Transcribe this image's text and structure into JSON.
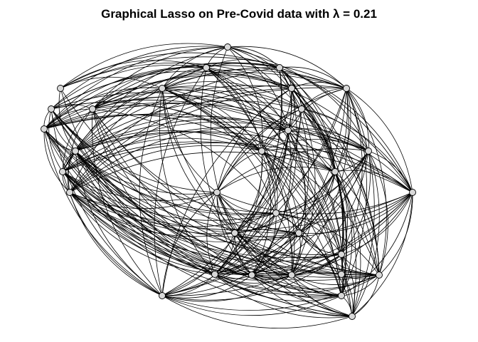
{
  "title": "Graphical Lasso on Pre-Covid data with λ =  0.21",
  "colors": {
    "edge": "#000000",
    "node_fill": "#d9d9d9",
    "node_stroke": "#000000",
    "background": "#ffffff"
  },
  "graph": {
    "nodes": [
      "n01",
      "n02",
      "n03",
      "n04",
      "n05",
      "n06",
      "n07",
      "n08",
      "n09",
      "n10",
      "n11",
      "n12",
      "n13",
      "n14",
      "n15",
      "n16",
      "n17",
      "n18",
      "n19",
      "n20",
      "n21",
      "n22",
      "n23",
      "n24",
      "n25",
      "n26",
      "n27",
      "n28",
      "n29",
      "n30",
      "n31",
      "n32"
    ],
    "edges": [
      [
        "n01",
        "n02"
      ],
      [
        "n01",
        "n03"
      ],
      [
        "n01",
        "n04"
      ],
      [
        "n01",
        "n05"
      ],
      [
        "n01",
        "n06"
      ],
      [
        "n01",
        "n07"
      ],
      [
        "n01",
        "n08"
      ],
      [
        "n01",
        "n09"
      ],
      [
        "n01",
        "n10"
      ],
      [
        "n01",
        "n11"
      ],
      [
        "n01",
        "n12"
      ],
      [
        "n01",
        "n14"
      ],
      [
        "n01",
        "n16"
      ],
      [
        "n01",
        "n20"
      ],
      [
        "n01",
        "n22"
      ],
      [
        "n01",
        "n28"
      ],
      [
        "n02",
        "n03"
      ],
      [
        "n02",
        "n04"
      ],
      [
        "n02",
        "n05"
      ],
      [
        "n02",
        "n06"
      ],
      [
        "n02",
        "n07"
      ],
      [
        "n02",
        "n13"
      ],
      [
        "n02",
        "n25"
      ],
      [
        "n02",
        "n32"
      ],
      [
        "n03",
        "n04"
      ],
      [
        "n03",
        "n05"
      ],
      [
        "n03",
        "n08"
      ],
      [
        "n03",
        "n09"
      ],
      [
        "n03",
        "n11"
      ],
      [
        "n03",
        "n12"
      ],
      [
        "n03",
        "n14"
      ],
      [
        "n03",
        "n16"
      ],
      [
        "n03",
        "n18"
      ],
      [
        "n03",
        "n20"
      ],
      [
        "n03",
        "n21"
      ],
      [
        "n03",
        "n24"
      ],
      [
        "n03",
        "n26"
      ],
      [
        "n03",
        "n27"
      ],
      [
        "n03",
        "n28"
      ],
      [
        "n03",
        "n29"
      ],
      [
        "n03",
        "n30"
      ],
      [
        "n03",
        "n31"
      ],
      [
        "n04",
        "n05"
      ],
      [
        "n04",
        "n06"
      ],
      [
        "n04",
        "n07"
      ],
      [
        "n04",
        "n09"
      ],
      [
        "n04",
        "n10"
      ],
      [
        "n04",
        "n11"
      ],
      [
        "n04",
        "n12"
      ],
      [
        "n04",
        "n13"
      ],
      [
        "n04",
        "n15"
      ],
      [
        "n04",
        "n17"
      ],
      [
        "n04",
        "n18"
      ],
      [
        "n04",
        "n20"
      ],
      [
        "n04",
        "n22"
      ],
      [
        "n04",
        "n23"
      ],
      [
        "n04",
        "n24"
      ],
      [
        "n04",
        "n25"
      ],
      [
        "n04",
        "n28"
      ],
      [
        "n04",
        "n32"
      ],
      [
        "n05",
        "n06"
      ],
      [
        "n05",
        "n09"
      ],
      [
        "n05",
        "n10"
      ],
      [
        "n05",
        "n11"
      ],
      [
        "n05",
        "n12"
      ],
      [
        "n05",
        "n14"
      ],
      [
        "n05",
        "n16"
      ],
      [
        "n05",
        "n17"
      ],
      [
        "n05",
        "n19"
      ],
      [
        "n05",
        "n21"
      ],
      [
        "n05",
        "n22"
      ],
      [
        "n05",
        "n23"
      ],
      [
        "n05",
        "n24"
      ],
      [
        "n05",
        "n25"
      ],
      [
        "n05",
        "n27"
      ],
      [
        "n05",
        "n29"
      ],
      [
        "n05",
        "n30"
      ],
      [
        "n06",
        "n07"
      ],
      [
        "n06",
        "n08"
      ],
      [
        "n06",
        "n09"
      ],
      [
        "n06",
        "n10"
      ],
      [
        "n06",
        "n12"
      ],
      [
        "n06",
        "n13"
      ],
      [
        "n06",
        "n14"
      ],
      [
        "n06",
        "n17"
      ],
      [
        "n06",
        "n18"
      ],
      [
        "n06",
        "n19"
      ],
      [
        "n06",
        "n22"
      ],
      [
        "n06",
        "n24"
      ],
      [
        "n06",
        "n25"
      ],
      [
        "n06",
        "n26"
      ],
      [
        "n06",
        "n28"
      ],
      [
        "n06",
        "n29"
      ],
      [
        "n06",
        "n30"
      ],
      [
        "n06",
        "n31"
      ],
      [
        "n07",
        "n08"
      ],
      [
        "n07",
        "n09"
      ],
      [
        "n07",
        "n10"
      ],
      [
        "n07",
        "n11"
      ],
      [
        "n07",
        "n12"
      ],
      [
        "n07",
        "n15"
      ],
      [
        "n07",
        "n16"
      ],
      [
        "n07",
        "n17"
      ],
      [
        "n07",
        "n18"
      ],
      [
        "n07",
        "n19"
      ],
      [
        "n07",
        "n20"
      ],
      [
        "n07",
        "n22"
      ],
      [
        "n07",
        "n23"
      ],
      [
        "n07",
        "n24"
      ],
      [
        "n07",
        "n26"
      ],
      [
        "n07",
        "n27"
      ],
      [
        "n07",
        "n28"
      ],
      [
        "n07",
        "n29"
      ],
      [
        "n07",
        "n30"
      ],
      [
        "n07",
        "n31"
      ],
      [
        "n08",
        "n09"
      ],
      [
        "n08",
        "n11"
      ],
      [
        "n08",
        "n12"
      ],
      [
        "n08",
        "n13"
      ],
      [
        "n08",
        "n14"
      ],
      [
        "n08",
        "n16"
      ],
      [
        "n08",
        "n19"
      ],
      [
        "n08",
        "n20"
      ],
      [
        "n08",
        "n21"
      ],
      [
        "n08",
        "n23"
      ],
      [
        "n08",
        "n27"
      ],
      [
        "n08",
        "n28"
      ],
      [
        "n08",
        "n29"
      ],
      [
        "n08",
        "n30"
      ],
      [
        "n09",
        "n10"
      ],
      [
        "n09",
        "n11"
      ],
      [
        "n09",
        "n12"
      ],
      [
        "n09",
        "n14"
      ],
      [
        "n09",
        "n15"
      ],
      [
        "n09",
        "n16"
      ],
      [
        "n09",
        "n18"
      ],
      [
        "n09",
        "n21"
      ],
      [
        "n09",
        "n23"
      ],
      [
        "n09",
        "n25"
      ],
      [
        "n09",
        "n26"
      ],
      [
        "n09",
        "n28"
      ],
      [
        "n09",
        "n29"
      ],
      [
        "n09",
        "n31"
      ],
      [
        "n10",
        "n11"
      ],
      [
        "n10",
        "n12"
      ],
      [
        "n10",
        "n13"
      ],
      [
        "n10",
        "n14"
      ],
      [
        "n10",
        "n15"
      ],
      [
        "n10",
        "n17"
      ],
      [
        "n10",
        "n19"
      ],
      [
        "n10",
        "n20"
      ],
      [
        "n10",
        "n22"
      ],
      [
        "n10",
        "n24"
      ],
      [
        "n10",
        "n25"
      ],
      [
        "n10",
        "n27"
      ],
      [
        "n10",
        "n28"
      ],
      [
        "n10",
        "n30"
      ],
      [
        "n11",
        "n12"
      ],
      [
        "n11",
        "n13"
      ],
      [
        "n11",
        "n14"
      ],
      [
        "n11",
        "n15"
      ],
      [
        "n11",
        "n17"
      ],
      [
        "n11",
        "n18"
      ],
      [
        "n11",
        "n20"
      ],
      [
        "n11",
        "n21"
      ],
      [
        "n11",
        "n23"
      ],
      [
        "n11",
        "n25"
      ],
      [
        "n11",
        "n26"
      ],
      [
        "n11",
        "n28"
      ],
      [
        "n11",
        "n29"
      ],
      [
        "n11",
        "n30"
      ],
      [
        "n11",
        "n31"
      ],
      [
        "n12",
        "n13"
      ],
      [
        "n12",
        "n14"
      ],
      [
        "n12",
        "n15"
      ],
      [
        "n12",
        "n16"
      ],
      [
        "n12",
        "n18"
      ],
      [
        "n12",
        "n19"
      ],
      [
        "n12",
        "n20"
      ],
      [
        "n12",
        "n22"
      ],
      [
        "n12",
        "n23"
      ],
      [
        "n12",
        "n25"
      ],
      [
        "n12",
        "n26"
      ],
      [
        "n12",
        "n27"
      ],
      [
        "n12",
        "n29"
      ],
      [
        "n12",
        "n30"
      ],
      [
        "n13",
        "n14"
      ],
      [
        "n13",
        "n15"
      ],
      [
        "n13",
        "n16"
      ],
      [
        "n13",
        "n17"
      ],
      [
        "n13",
        "n18"
      ],
      [
        "n13",
        "n19"
      ],
      [
        "n13",
        "n20"
      ],
      [
        "n13",
        "n21"
      ],
      [
        "n13",
        "n22"
      ],
      [
        "n13",
        "n24"
      ],
      [
        "n13",
        "n25"
      ],
      [
        "n13",
        "n26"
      ],
      [
        "n13",
        "n27"
      ],
      [
        "n13",
        "n28"
      ],
      [
        "n13",
        "n29"
      ],
      [
        "n13",
        "n30"
      ],
      [
        "n13",
        "n31"
      ],
      [
        "n13",
        "n32"
      ],
      [
        "n14",
        "n15"
      ],
      [
        "n14",
        "n16"
      ],
      [
        "n14",
        "n18"
      ],
      [
        "n14",
        "n19"
      ],
      [
        "n14",
        "n20"
      ],
      [
        "n14",
        "n21"
      ],
      [
        "n14",
        "n22"
      ],
      [
        "n14",
        "n23"
      ],
      [
        "n14",
        "n24"
      ],
      [
        "n14",
        "n25"
      ],
      [
        "n14",
        "n26"
      ],
      [
        "n14",
        "n27"
      ],
      [
        "n14",
        "n28"
      ],
      [
        "n14",
        "n30"
      ],
      [
        "n15",
        "n16"
      ],
      [
        "n15",
        "n17"
      ],
      [
        "n15",
        "n19"
      ],
      [
        "n15",
        "n20"
      ],
      [
        "n15",
        "n21"
      ],
      [
        "n15",
        "n22"
      ],
      [
        "n15",
        "n23"
      ],
      [
        "n15",
        "n24"
      ],
      [
        "n15",
        "n25"
      ],
      [
        "n15",
        "n26"
      ],
      [
        "n15",
        "n27"
      ],
      [
        "n15",
        "n28"
      ],
      [
        "n15",
        "n29"
      ],
      [
        "n15",
        "n31"
      ],
      [
        "n16",
        "n17"
      ],
      [
        "n16",
        "n18"
      ],
      [
        "n16",
        "n19"
      ],
      [
        "n16",
        "n20"
      ],
      [
        "n16",
        "n21"
      ],
      [
        "n16",
        "n22"
      ],
      [
        "n16",
        "n23"
      ],
      [
        "n16",
        "n24"
      ],
      [
        "n16",
        "n26"
      ],
      [
        "n16",
        "n27"
      ],
      [
        "n16",
        "n28"
      ],
      [
        "n16",
        "n29"
      ],
      [
        "n16",
        "n30"
      ],
      [
        "n16",
        "n31"
      ],
      [
        "n17",
        "n18"
      ],
      [
        "n17",
        "n19"
      ],
      [
        "n17",
        "n20"
      ],
      [
        "n17",
        "n21"
      ],
      [
        "n17",
        "n22"
      ],
      [
        "n17",
        "n23"
      ],
      [
        "n17",
        "n24"
      ],
      [
        "n17",
        "n25"
      ],
      [
        "n17",
        "n26"
      ],
      [
        "n17",
        "n28"
      ],
      [
        "n17",
        "n29"
      ],
      [
        "n17",
        "n30"
      ],
      [
        "n17",
        "n31"
      ],
      [
        "n18",
        "n19"
      ],
      [
        "n18",
        "n20"
      ],
      [
        "n18",
        "n21"
      ],
      [
        "n18",
        "n22"
      ],
      [
        "n18",
        "n23"
      ],
      [
        "n18",
        "n24"
      ],
      [
        "n18",
        "n25"
      ],
      [
        "n18",
        "n26"
      ],
      [
        "n18",
        "n27"
      ],
      [
        "n18",
        "n28"
      ],
      [
        "n18",
        "n29"
      ],
      [
        "n18",
        "n30"
      ],
      [
        "n19",
        "n20"
      ],
      [
        "n19",
        "n21"
      ],
      [
        "n19",
        "n22"
      ],
      [
        "n19",
        "n23"
      ],
      [
        "n19",
        "n25"
      ],
      [
        "n19",
        "n26"
      ],
      [
        "n19",
        "n27"
      ],
      [
        "n19",
        "n28"
      ],
      [
        "n19",
        "n29"
      ],
      [
        "n19",
        "n30"
      ],
      [
        "n19",
        "n31"
      ],
      [
        "n20",
        "n21"
      ],
      [
        "n20",
        "n22"
      ],
      [
        "n20",
        "n23"
      ],
      [
        "n20",
        "n24"
      ],
      [
        "n20",
        "n25"
      ],
      [
        "n20",
        "n26"
      ],
      [
        "n20",
        "n27"
      ],
      [
        "n20",
        "n28"
      ],
      [
        "n20",
        "n29"
      ],
      [
        "n20",
        "n30"
      ],
      [
        "n20",
        "n31"
      ],
      [
        "n21",
        "n22"
      ],
      [
        "n21",
        "n23"
      ],
      [
        "n21",
        "n24"
      ],
      [
        "n21",
        "n25"
      ],
      [
        "n21",
        "n26"
      ],
      [
        "n21",
        "n27"
      ],
      [
        "n21",
        "n28"
      ],
      [
        "n21",
        "n29"
      ],
      [
        "n21",
        "n30"
      ],
      [
        "n22",
        "n23"
      ],
      [
        "n22",
        "n24"
      ],
      [
        "n22",
        "n25"
      ],
      [
        "n22",
        "n26"
      ],
      [
        "n22",
        "n27"
      ],
      [
        "n22",
        "n28"
      ],
      [
        "n22",
        "n29"
      ],
      [
        "n22",
        "n30"
      ],
      [
        "n22",
        "n31"
      ],
      [
        "n23",
        "n24"
      ],
      [
        "n23",
        "n25"
      ],
      [
        "n23",
        "n26"
      ],
      [
        "n23",
        "n27"
      ],
      [
        "n23",
        "n28"
      ],
      [
        "n23",
        "n29"
      ],
      [
        "n23",
        "n30"
      ],
      [
        "n23",
        "n31"
      ],
      [
        "n24",
        "n25"
      ],
      [
        "n24",
        "n26"
      ],
      [
        "n24",
        "n27"
      ],
      [
        "n24",
        "n28"
      ],
      [
        "n24",
        "n29"
      ],
      [
        "n24",
        "n30"
      ],
      [
        "n24",
        "n31"
      ],
      [
        "n25",
        "n26"
      ],
      [
        "n25",
        "n27"
      ],
      [
        "n25",
        "n28"
      ],
      [
        "n25",
        "n29"
      ],
      [
        "n25",
        "n30"
      ],
      [
        "n25",
        "n31"
      ],
      [
        "n26",
        "n27"
      ],
      [
        "n26",
        "n28"
      ],
      [
        "n26",
        "n29"
      ],
      [
        "n26",
        "n30"
      ],
      [
        "n26",
        "n31"
      ],
      [
        "n27",
        "n28"
      ],
      [
        "n27",
        "n29"
      ],
      [
        "n27",
        "n30"
      ],
      [
        "n27",
        "n31"
      ],
      [
        "n28",
        "n29"
      ],
      [
        "n28",
        "n30"
      ],
      [
        "n28",
        "n31"
      ],
      [
        "n29",
        "n30"
      ],
      [
        "n29",
        "n31"
      ],
      [
        "n30",
        "n31"
      ],
      [
        "n28",
        "n32"
      ],
      [
        "n30",
        "n32"
      ],
      [
        "n31",
        "n32"
      ],
      [
        "n05",
        "n32"
      ],
      [
        "n12",
        "n32"
      ]
    ]
  }
}
